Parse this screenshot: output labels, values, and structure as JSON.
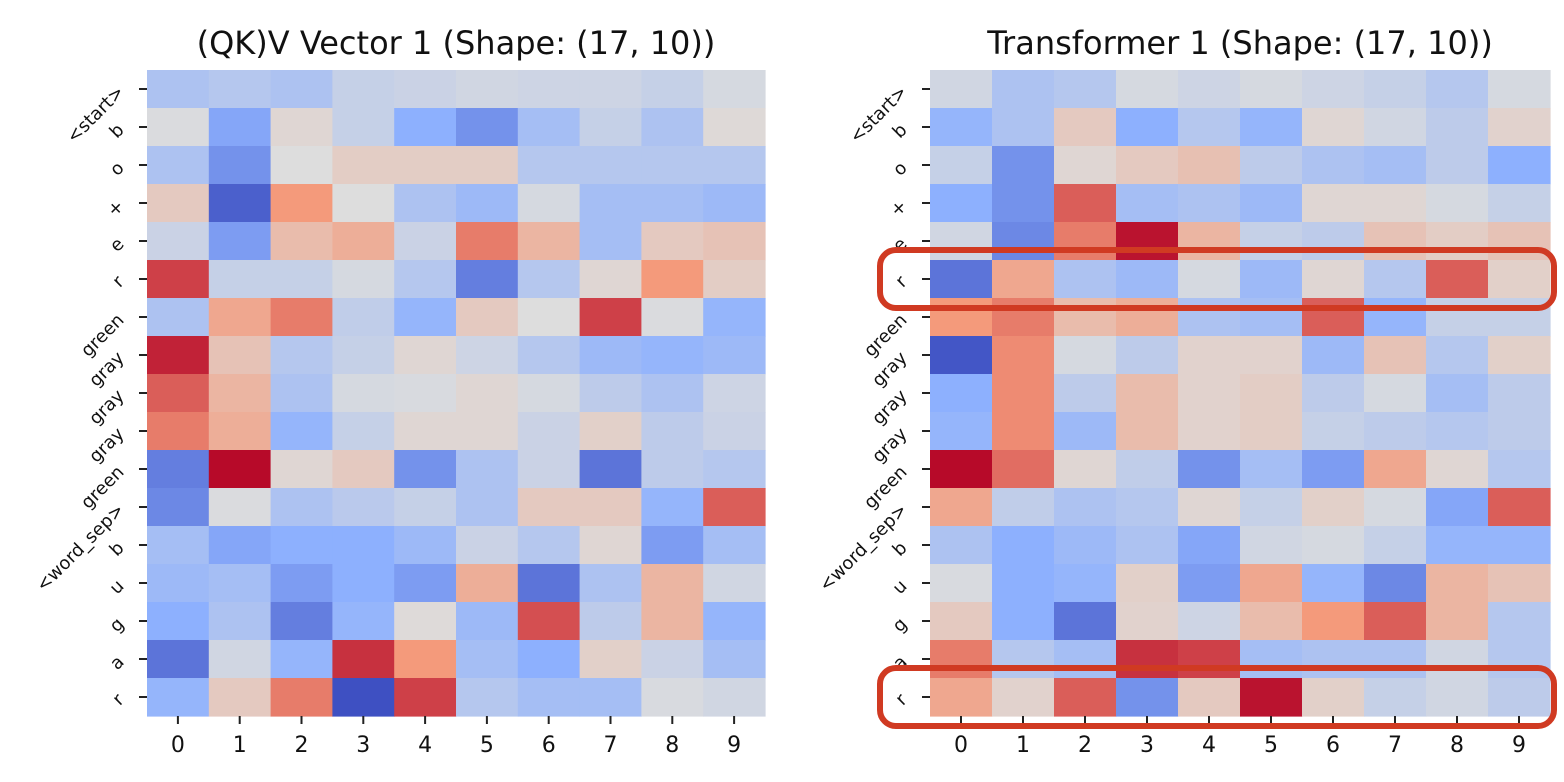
{
  "colors": {
    "colormap": "coolwarm",
    "highlight_box": "#d03a22"
  },
  "row_labels": [
    "<start>",
    "b",
    "o",
    "+",
    "e",
    "r",
    "green",
    "gray",
    "gray",
    "gray",
    "green",
    "<word_sep>",
    "b",
    "u",
    "g",
    "a",
    "r"
  ],
  "chart_data": [
    {
      "type": "heatmap",
      "title": "(QK)V Vector 1 (Shape: (17, 10))",
      "x_ticks": [
        "0",
        "1",
        "2",
        "3",
        "4",
        "5",
        "6",
        "7",
        "8",
        "9"
      ],
      "y_ticks": [
        "<start>",
        "b",
        "o",
        "+",
        "e",
        "r",
        "green",
        "gray",
        "gray",
        "gray",
        "green",
        "<word_sep>",
        "b",
        "u",
        "g",
        "a",
        "r"
      ],
      "colormap": "coolwarm",
      "value_range": [
        -1,
        1
      ],
      "colorbar": false,
      "values": [
        [
          -0.3,
          -0.25,
          -0.3,
          -0.15,
          -0.12,
          -0.08,
          -0.1,
          -0.1,
          -0.15,
          -0.05
        ],
        [
          -0.02,
          -0.55,
          0.05,
          -0.15,
          -0.5,
          -0.65,
          -0.35,
          -0.15,
          -0.3,
          0.03
        ],
        [
          -0.3,
          -0.65,
          0.0,
          0.12,
          0.12,
          0.12,
          -0.25,
          -0.25,
          -0.25,
          -0.25
        ],
        [
          0.15,
          -0.9,
          0.5,
          0.0,
          -0.3,
          -0.4,
          -0.05,
          -0.35,
          -0.35,
          -0.4
        ],
        [
          -0.12,
          -0.6,
          0.25,
          0.35,
          -0.12,
          0.6,
          0.3,
          -0.35,
          0.15,
          0.2
        ],
        [
          0.8,
          -0.15,
          -0.15,
          -0.05,
          -0.25,
          -0.75,
          -0.25,
          0.05,
          0.5,
          0.12
        ],
        [
          -0.3,
          0.4,
          0.6,
          -0.18,
          -0.45,
          0.15,
          0.0,
          0.8,
          -0.02,
          -0.45
        ],
        [
          0.9,
          0.2,
          -0.25,
          -0.15,
          0.05,
          -0.1,
          -0.25,
          -0.4,
          -0.45,
          -0.4
        ],
        [
          0.7,
          0.3,
          -0.3,
          -0.05,
          -0.03,
          0.05,
          -0.05,
          -0.2,
          -0.3,
          -0.1
        ],
        [
          0.6,
          0.35,
          -0.45,
          -0.15,
          0.05,
          0.05,
          -0.12,
          0.1,
          -0.2,
          -0.12
        ],
        [
          -0.75,
          0.98,
          0.05,
          0.15,
          -0.65,
          -0.3,
          -0.12,
          -0.8,
          -0.2,
          -0.25
        ],
        [
          -0.7,
          -0.02,
          -0.3,
          -0.22,
          -0.15,
          -0.3,
          0.15,
          0.15,
          -0.45,
          0.7
        ],
        [
          -0.35,
          -0.55,
          -0.5,
          -0.5,
          -0.4,
          -0.12,
          -0.25,
          0.05,
          -0.6,
          -0.35
        ],
        [
          -0.4,
          -0.35,
          -0.6,
          -0.5,
          -0.6,
          0.35,
          -0.8,
          -0.3,
          0.3,
          -0.08
        ],
        [
          -0.5,
          -0.3,
          -0.75,
          -0.45,
          0.02,
          -0.4,
          0.75,
          -0.2,
          0.3,
          -0.45
        ],
        [
          -0.8,
          -0.08,
          -0.45,
          0.85,
          0.5,
          -0.35,
          -0.5,
          0.1,
          -0.12,
          -0.35
        ],
        [
          -0.45,
          0.15,
          0.6,
          -0.98,
          0.8,
          -0.25,
          -0.35,
          -0.35,
          -0.03,
          -0.08
        ]
      ]
    },
    {
      "type": "heatmap",
      "title": "Transformer 1 (Shape: (17, 10))",
      "x_ticks": [
        "0",
        "1",
        "2",
        "3",
        "4",
        "5",
        "6",
        "7",
        "8",
        "9"
      ],
      "y_ticks": [
        "<start>",
        "b",
        "o",
        "+",
        "e",
        "r",
        "green",
        "gray",
        "gray",
        "gray",
        "green",
        "<word_sep>",
        "b",
        "u",
        "g",
        "a",
        "r"
      ],
      "colormap": "coolwarm",
      "value_range": [
        -1,
        1
      ],
      "colorbar": false,
      "highlighted_rows": [
        5,
        16
      ],
      "values": [
        [
          -0.08,
          -0.3,
          -0.25,
          -0.05,
          -0.1,
          -0.05,
          -0.1,
          -0.15,
          -0.25,
          -0.05
        ],
        [
          -0.45,
          -0.3,
          0.15,
          -0.5,
          -0.25,
          -0.45,
          0.05,
          -0.08,
          -0.2,
          0.08
        ],
        [
          -0.15,
          -0.65,
          0.05,
          0.15,
          0.22,
          -0.2,
          -0.3,
          -0.35,
          -0.2,
          -0.5
        ],
        [
          -0.5,
          -0.65,
          0.7,
          -0.35,
          -0.3,
          -0.4,
          0.05,
          0.05,
          -0.05,
          -0.15
        ],
        [
          -0.08,
          -0.7,
          0.6,
          0.95,
          0.3,
          -0.15,
          -0.2,
          0.2,
          0.12,
          0.2
        ],
        [
          -0.8,
          0.4,
          -0.3,
          -0.4,
          -0.05,
          -0.4,
          0.05,
          -0.25,
          0.7,
          0.1
        ],
        [
          0.5,
          0.6,
          0.25,
          0.35,
          -0.3,
          -0.35,
          0.7,
          -0.45,
          -0.15,
          -0.15
        ],
        [
          -0.95,
          0.55,
          -0.05,
          -0.2,
          0.08,
          0.08,
          -0.4,
          0.2,
          -0.25,
          0.1
        ],
        [
          -0.5,
          0.55,
          -0.2,
          0.25,
          0.08,
          0.12,
          -0.2,
          -0.05,
          -0.35,
          -0.2
        ],
        [
          -0.45,
          0.55,
          -0.4,
          0.25,
          0.08,
          0.12,
          -0.15,
          -0.2,
          -0.25,
          -0.2
        ],
        [
          0.98,
          0.65,
          0.05,
          -0.18,
          -0.65,
          -0.35,
          -0.6,
          0.4,
          0.05,
          -0.25
        ],
        [
          0.4,
          -0.18,
          -0.3,
          -0.25,
          0.05,
          -0.15,
          0.1,
          -0.05,
          -0.55,
          0.7
        ],
        [
          -0.3,
          -0.5,
          -0.4,
          -0.3,
          -0.55,
          -0.08,
          -0.05,
          -0.15,
          -0.45,
          -0.45
        ],
        [
          -0.03,
          -0.5,
          -0.45,
          0.1,
          -0.6,
          0.4,
          -0.45,
          -0.7,
          0.3,
          0.2
        ],
        [
          0.15,
          -0.5,
          -0.8,
          0.08,
          -0.1,
          0.25,
          0.5,
          0.7,
          0.3,
          -0.25
        ],
        [
          0.6,
          -0.25,
          -0.35,
          0.85,
          0.8,
          -0.35,
          -0.3,
          -0.3,
          -0.08,
          -0.25
        ],
        [
          0.4,
          0.08,
          0.7,
          -0.65,
          0.15,
          0.95,
          0.1,
          -0.15,
          -0.08,
          -0.2
        ]
      ]
    }
  ]
}
